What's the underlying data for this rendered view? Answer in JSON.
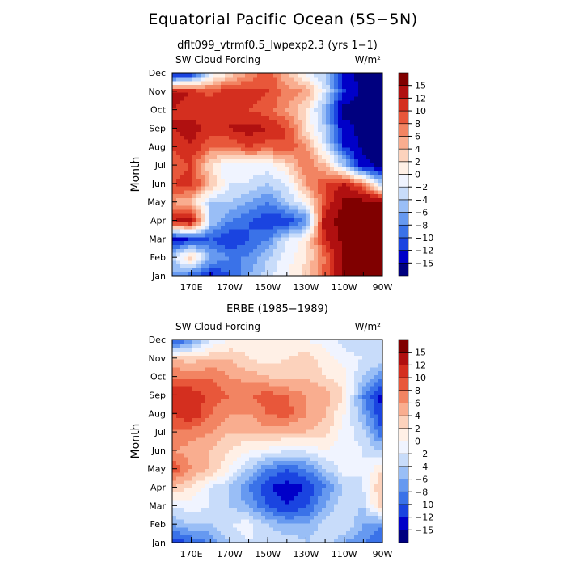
{
  "title": "Equatorial Pacific Ocean (5S−5N)",
  "colorbar": {
    "colors": [
      "#00007f",
      "#0000c8",
      "#1a44e0",
      "#3a72e8",
      "#6699f0",
      "#99bef6",
      "#c8dcfa",
      "#f0f4ff",
      "#fff0e6",
      "#fcd2bc",
      "#f9ad8f",
      "#f28462",
      "#e8573a",
      "#d42f1f",
      "#b01010",
      "#800000"
    ],
    "labels": [
      "−15",
      "−12",
      "−10",
      "−8",
      "−6",
      "−4",
      "−2",
      "0",
      "2",
      "4",
      "6",
      "8",
      "10",
      "12",
      "15"
    ]
  },
  "chart_data": [
    {
      "type": "heatmap",
      "subtitle": "dflt099_vtrmf0.5_lwpexp2.3 (yrs 1−1)",
      "variable": "SW Cloud Forcing",
      "units": "W/m²",
      "ylabel": "Month",
      "y_ticks": [
        "Jan",
        "Feb",
        "Mar",
        "Apr",
        "May",
        "Jun",
        "Jul",
        "Aug",
        "Sep",
        "Oct",
        "Nov",
        "Dec"
      ],
      "x_ticks": [
        "170E",
        "170W",
        "150W",
        "130W",
        "110W",
        "90W"
      ],
      "x_range": [
        "160E",
        "90W"
      ],
      "x_axis": [
        160,
        170,
        180,
        190,
        200,
        210,
        220,
        230,
        240,
        250,
        260,
        270
      ],
      "months": [
        "Jan",
        "Feb",
        "Mar",
        "Apr",
        "May",
        "Jun",
        "Jul",
        "Aug",
        "Sep",
        "Oct",
        "Nov",
        "Dec"
      ],
      "values": [
        [
          -6,
          -10,
          -13,
          -10,
          -6,
          -3,
          0,
          3,
          9,
          15,
          16,
          16
        ],
        [
          -4,
          4,
          -6,
          -8,
          -8,
          -4,
          -1,
          2,
          8,
          16,
          16,
          16
        ],
        [
          -14,
          -12,
          -10,
          -12,
          -10,
          -8,
          -2,
          1,
          12,
          16,
          16,
          16
        ],
        [
          12,
          14,
          -4,
          -8,
          -10,
          -12,
          -12,
          -8,
          14,
          16,
          16,
          16
        ],
        [
          6,
          4,
          -4,
          -4,
          -6,
          -8,
          -4,
          0,
          10,
          16,
          16,
          16
        ],
        [
          10,
          11,
          4,
          -2,
          -2,
          -4,
          -2,
          6,
          10,
          12,
          8,
          -4
        ],
        [
          9,
          10,
          2,
          -2,
          -1,
          -1,
          2,
          8,
          4,
          -4,
          -14,
          -16
        ],
        [
          10,
          12,
          8,
          8,
          10,
          9,
          10,
          6,
          -2,
          -12,
          -16,
          -16
        ],
        [
          12,
          13,
          11,
          12,
          13,
          12,
          10,
          2,
          -4,
          -14,
          -16,
          -16
        ],
        [
          12,
          11,
          12,
          12,
          10,
          9,
          6,
          2,
          -6,
          -16,
          -16,
          -16
        ],
        [
          13,
          12,
          9,
          12,
          11,
          10,
          7,
          6,
          -2,
          -12,
          -16,
          -16
        ],
        [
          -15,
          -13,
          -2,
          2,
          6,
          10,
          4,
          -1,
          -4,
          -14,
          -16,
          -16
        ]
      ]
    },
    {
      "type": "heatmap",
      "subtitle": "ERBE (1985−1989)",
      "variable": "SW Cloud Forcing",
      "units": "W/m²",
      "ylabel": "Month",
      "y_ticks": [
        "Jan",
        "Feb",
        "Mar",
        "Apr",
        "May",
        "Jun",
        "Jul",
        "Aug",
        "Sep",
        "Oct",
        "Nov",
        "Dec"
      ],
      "x_ticks": [
        "170E",
        "170W",
        "150W",
        "130W",
        "110W",
        "90W"
      ],
      "x_range": [
        "160E",
        "90W"
      ],
      "x_axis": [
        160,
        170,
        180,
        190,
        200,
        210,
        220,
        230,
        240,
        250,
        260,
        270
      ],
      "months": [
        "Jan",
        "Feb",
        "Mar",
        "Apr",
        "May",
        "Jun",
        "Jul",
        "Aug",
        "Sep",
        "Oct",
        "Nov",
        "Dec"
      ],
      "values": [
        [
          -12,
          -10,
          -8,
          -4,
          -2,
          -3,
          -2,
          -4,
          -2,
          -6,
          -8,
          -10
        ],
        [
          -6,
          -4,
          -4,
          -2,
          -1,
          -4,
          -6,
          -6,
          -3,
          -2,
          -6,
          -8
        ],
        [
          -2,
          -1,
          -2,
          -4,
          -6,
          -10,
          -12,
          -10,
          -6,
          -2,
          -4,
          4
        ],
        [
          4,
          2,
          -2,
          -4,
          -8,
          -12,
          -13,
          -12,
          -8,
          -4,
          -2,
          4
        ],
        [
          10,
          6,
          4,
          0,
          -4,
          -8,
          -10,
          -8,
          -4,
          -1,
          -2,
          2
        ],
        [
          6,
          5,
          4,
          2,
          0,
          -1,
          -2,
          -2,
          0,
          -1,
          -2,
          -4
        ],
        [
          8,
          7,
          6,
          4,
          4,
          5,
          4,
          4,
          3,
          -1,
          -3,
          -10
        ],
        [
          10,
          12,
          8,
          6,
          6,
          8,
          9,
          6,
          4,
          0,
          -6,
          -12
        ],
        [
          12,
          12,
          9,
          8,
          8,
          9,
          8,
          6,
          5,
          2,
          -8,
          -13
        ],
        [
          8,
          7,
          8,
          6,
          5,
          4,
          3,
          4,
          2,
          1,
          -4,
          -8
        ],
        [
          4,
          3,
          4,
          4,
          2,
          1,
          2,
          3,
          1,
          -1,
          -2,
          -2
        ],
        [
          -12,
          -8,
          -2,
          0,
          1,
          1,
          1,
          0,
          -1,
          -3,
          -4,
          -2
        ]
      ]
    }
  ]
}
